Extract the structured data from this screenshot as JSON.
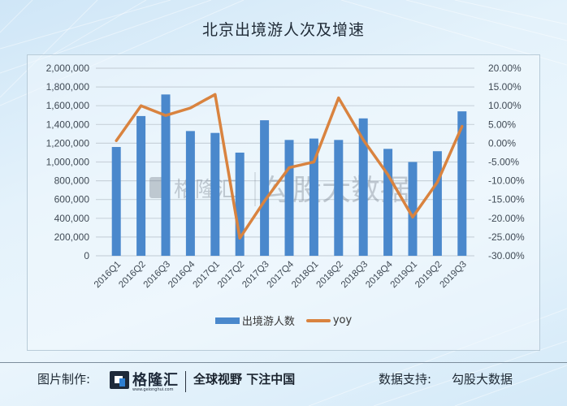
{
  "title": "北京出境游人次及增速",
  "chart_data": {
    "type": "bar+line",
    "title": "北京出境游人次及增速",
    "categories": [
      "2016Q1",
      "2016Q2",
      "2016Q3",
      "2016Q4",
      "2017Q1",
      "2017Q2",
      "2017Q3",
      "2017Q4",
      "2018Q1",
      "2018Q2",
      "2018Q3",
      "2018Q4",
      "2019Q1",
      "2019Q2",
      "2019Q3"
    ],
    "series": [
      {
        "name": "出境游人数",
        "type": "bar",
        "axis": "left",
        "color": "#4a88cc",
        "values": [
          1160000,
          1490000,
          1720000,
          1330000,
          1310000,
          1100000,
          1445000,
          1235000,
          1250000,
          1235000,
          1465000,
          1140000,
          1000000,
          1115000,
          1540000
        ]
      },
      {
        "name": "yoy",
        "type": "line",
        "axis": "right",
        "color": "#d9833f",
        "values": [
          0.7,
          10.0,
          7.4,
          9.4,
          13.0,
          -25.3,
          -15.4,
          -6.5,
          -5.0,
          12.1,
          0.9,
          -8.4,
          -19.7,
          -10.4,
          4.5
        ]
      }
    ],
    "left_axis": {
      "ylim": [
        0,
        2000000
      ],
      "ticks": [
        "0",
        "200,000",
        "400,000",
        "600,000",
        "800,000",
        "1,000,000",
        "1,200,000",
        "1,400,000",
        "1,600,000",
        "1,800,000",
        "2,000,000"
      ]
    },
    "right_axis": {
      "ylim": [
        -30,
        20
      ],
      "unit": "%",
      "ticks": [
        "-30.00%",
        "-25.00%",
        "-20.00%",
        "-15.00%",
        "-10.00%",
        "-5.00%",
        "0.00%",
        "5.00%",
        "10.00%",
        "15.00%",
        "20.00%"
      ]
    },
    "xlabel": "",
    "ylabel": "",
    "grid": true,
    "legend_position": "bottom"
  },
  "legend": {
    "bar_label": "出境游人数",
    "line_label": "yoy"
  },
  "watermark": {
    "left": "格隆汇",
    "right": "勾股大数据"
  },
  "footer": {
    "credit_label": "图片制作:",
    "brand_name": "格隆汇",
    "brand_url": "www.gelonghui.com",
    "slogan": "全球视野 下注中国",
    "source_label": "数据支持:",
    "source_value": "勾股大数据"
  },
  "colors": {
    "bar": "#4a88cc",
    "line": "#d9833f",
    "grid": "#c9d3db"
  }
}
